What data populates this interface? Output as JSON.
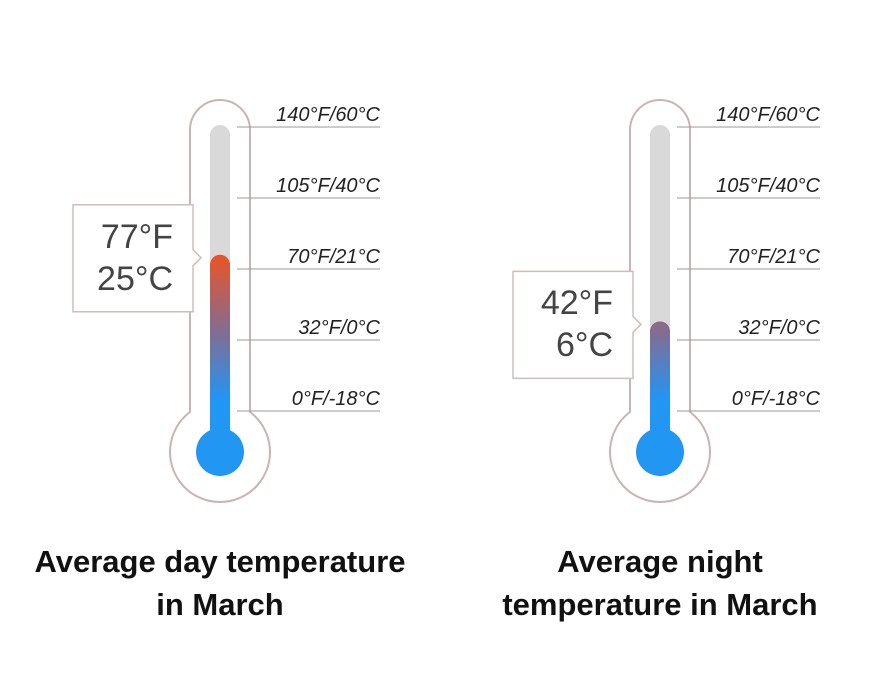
{
  "chart_data": [
    {
      "type": "thermometer",
      "title": "Average day temperature in March",
      "values": [
        77
      ],
      "value_labels": [
        "77°F\n25°C"
      ],
      "ylim": [
        0,
        140
      ],
      "yticks": [
        {
          "value": 0,
          "label": "0°F/-18°C"
        },
        {
          "value": 32,
          "label": "32°F/0°C"
        },
        {
          "value": 70,
          "label": "70°F/21°C"
        },
        {
          "value": 105,
          "label": "105°F/40°C"
        },
        {
          "value": 140,
          "label": "140°F/60°C"
        }
      ]
    },
    {
      "type": "thermometer",
      "title": "Average night temperature in March",
      "values": [
        42
      ],
      "value_labels": [
        "42°F\n6°C"
      ],
      "ylim": [
        0,
        140
      ],
      "yticks": [
        {
          "value": 0,
          "label": "0°F/-18°C"
        },
        {
          "value": 32,
          "label": "32°F/0°C"
        },
        {
          "value": 70,
          "label": "70°F/21°C"
        },
        {
          "value": 105,
          "label": "105°F/40°C"
        },
        {
          "value": 140,
          "label": "140°F/60°C"
        }
      ]
    }
  ]
}
